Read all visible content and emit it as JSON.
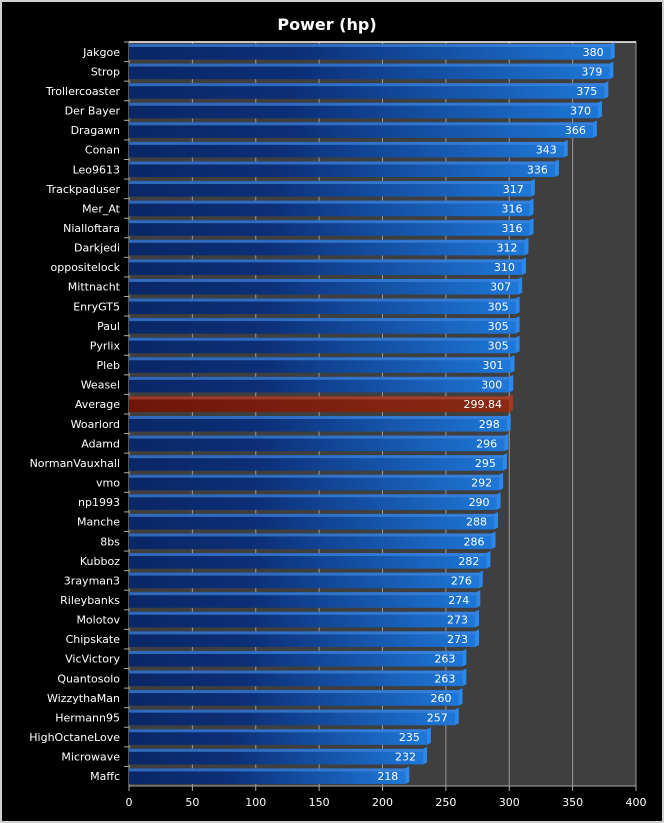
{
  "chart_data": {
    "type": "bar",
    "orientation": "horizontal",
    "title": "Power (hp)",
    "xlabel": "",
    "ylabel": "",
    "xlim": [
      0,
      400
    ],
    "xticks": [
      0,
      50,
      100,
      150,
      200,
      250,
      300,
      350,
      400
    ],
    "grid": true,
    "legend": "none",
    "categories": [
      "Jakgoe",
      "Strop",
      "Trollercoaster",
      "Der Bayer",
      "Dragawn",
      "Conan",
      "Leo9613",
      "Trackpaduser",
      "Mer_At",
      "Nialloftara",
      "Darkjedi",
      "oppositelock",
      "Mittnacht",
      "EnryGT5",
      "Paul",
      "Pyrlix",
      "Pleb",
      "Weasel",
      "Average",
      "Woarlord",
      "Adamd",
      "NormanVauxhall",
      "vmo",
      "np1993",
      "Manche",
      "8bs",
      "Kubboz",
      "3rayman3",
      "Rileybanks",
      "Molotov",
      "Chipskate",
      "VicVictory",
      "Quantosolo",
      "WizzythaMan",
      "Hermann95",
      "HighOctaneLove",
      "Microwave",
      "Maffc"
    ],
    "values": [
      380,
      379,
      375,
      370,
      366,
      343,
      336,
      317,
      316,
      316,
      312,
      310,
      307,
      305,
      305,
      305,
      301,
      300,
      299.84,
      298,
      296,
      295,
      292,
      290,
      288,
      286,
      282,
      276,
      274,
      273,
      273,
      263,
      263,
      260,
      257,
      235,
      232,
      218
    ],
    "highlight": "Average",
    "colors": {
      "bar": "#1e74d4",
      "bar_dark": "#0a2766",
      "highlight": "#7a1e0e",
      "plot_bg": "#3f3f3f",
      "grid": "#9a9a9a"
    }
  }
}
